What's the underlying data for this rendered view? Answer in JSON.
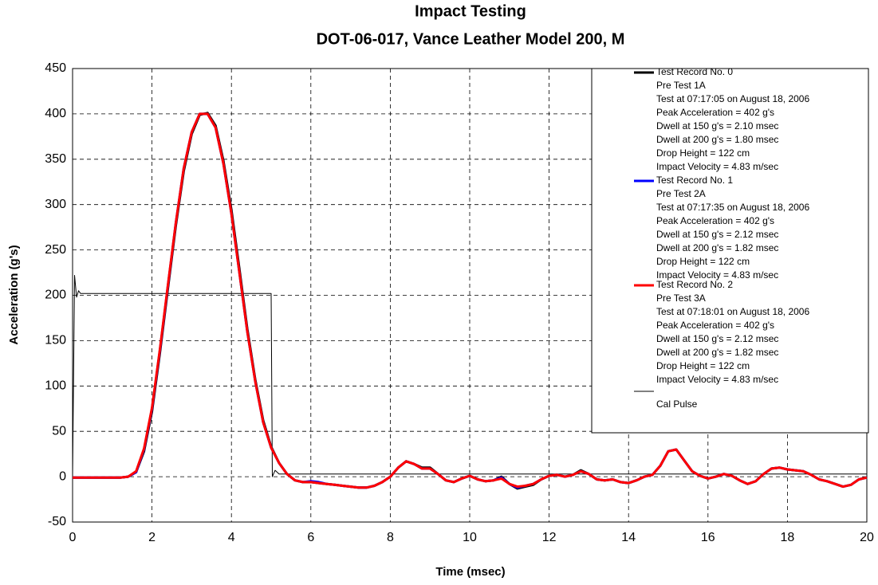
{
  "chart_data": {
    "type": "line",
    "title": "Impact Testing",
    "subtitle": "DOT-06-017, Vance Leather Model 200, M",
    "x_label": "Time (msec)",
    "y_label": "Acceleration (g's)",
    "xlim": [
      0,
      20
    ],
    "xticks": [
      0,
      2,
      4,
      6,
      8,
      10,
      12,
      14,
      16,
      18,
      20
    ],
    "ylim": [
      -50,
      450
    ],
    "yticks": [
      -50,
      0,
      50,
      100,
      150,
      200,
      250,
      300,
      350,
      400,
      450
    ],
    "grid": true,
    "legend": "upper right",
    "x": [
      0,
      0.2,
      0.4,
      0.6,
      0.8,
      1,
      1.2,
      1.4,
      1.6,
      1.8,
      2,
      2.2,
      2.4,
      2.6,
      2.8,
      3,
      3.2,
      3.4,
      3.6,
      3.8,
      4,
      4.2,
      4.4,
      4.6,
      4.8,
      5,
      5.2,
      5.4,
      5.6,
      5.8,
      6,
      6.2,
      6.4,
      6.6,
      6.8,
      7,
      7.2,
      7.4,
      7.6,
      7.8,
      8,
      8.2,
      8.4,
      8.6,
      8.8,
      9,
      9.2,
      9.4,
      9.6,
      9.8,
      10,
      10.2,
      10.4,
      10.6,
      10.8,
      11,
      11.2,
      11.4,
      11.6,
      11.8,
      12,
      12.2,
      12.4,
      12.6,
      12.8,
      13,
      13.2,
      13.4,
      13.6,
      13.8,
      14,
      14.2,
      14.4,
      14.6,
      14.8,
      15,
      15.2,
      15.4,
      15.6,
      15.8,
      16,
      16.2,
      16.4,
      16.6,
      16.8,
      17,
      17.2,
      17.4,
      17.6,
      17.8,
      18,
      18.2,
      18.4,
      18.6,
      18.8,
      19,
      19.2,
      19.4,
      19.6,
      19.8,
      20
    ],
    "series": [
      {
        "name": "Test Record No. 0",
        "color": "#000000",
        "details": [
          "Pre Test 1A",
          "Test at 07:17:05 on August 18, 2006",
          "Peak Acceleration = 402 g's",
          "Dwell at 150 g's = 2.10 msec",
          "Dwell at 200 g's = 1.80 msec",
          "Drop Height = 122 cm",
          "Impact Velocity = 4.83 m/sec"
        ],
        "values": [
          -1,
          -1,
          -1,
          -1,
          -1,
          -1,
          -1,
          0,
          5,
          28,
          72,
          137,
          207,
          277,
          337,
          378,
          399,
          401,
          387,
          348,
          294,
          229,
          163,
          107,
          62,
          33,
          15,
          3,
          -4,
          -6,
          -6,
          -7,
          -8,
          -9,
          -10,
          -11,
          -12,
          -12,
          -10,
          -6,
          0,
          10,
          17,
          14,
          10,
          10,
          3,
          -4,
          -6,
          -2,
          1,
          -3,
          -5,
          -4,
          0,
          -8,
          -13,
          -11,
          -9,
          -3,
          1,
          2,
          0,
          2,
          7,
          3,
          -3,
          -4,
          -3,
          -6,
          -7,
          -4,
          0,
          2,
          12,
          28,
          30,
          18,
          6,
          1,
          -2,
          0,
          3,
          1,
          -4,
          -8,
          -5,
          3,
          9,
          10,
          8,
          7,
          6,
          2,
          -3,
          -5,
          -8,
          -11,
          -9,
          -3,
          -1
        ]
      },
      {
        "name": "Test Record No. 1",
        "color": "#0000ff",
        "details": [
          "Pre Test 2A",
          "Test at 07:17:35 on August 18, 2006",
          "Peak Acceleration = 402 g's",
          "Dwell at 150 g's = 2.12 msec",
          "Dwell at 200 g's = 1.82 msec",
          "Drop Height = 122 cm",
          "Impact Velocity = 4.83 m/sec"
        ],
        "values": [
          -1,
          -1,
          -1,
          -1,
          -1,
          -1,
          -1,
          0,
          5,
          30,
          75,
          140,
          210,
          280,
          340,
          380,
          400,
          400,
          385,
          345,
          290,
          225,
          160,
          105,
          60,
          32,
          15,
          3,
          -4,
          -6,
          -5,
          -6,
          -8,
          -9,
          -10,
          -11,
          -12,
          -12,
          -10,
          -6,
          0,
          10,
          17,
          14,
          9,
          9,
          3,
          -4,
          -6,
          -2,
          1,
          -3,
          -5,
          -4,
          -1,
          -8,
          -12,
          -10,
          -8,
          -3,
          1,
          2,
          0,
          2,
          6,
          3,
          -3,
          -4,
          -3,
          -6,
          -7,
          -4,
          0,
          2,
          12,
          28,
          30,
          18,
          6,
          1,
          -2,
          0,
          3,
          1,
          -4,
          -8,
          -5,
          3,
          9,
          10,
          8,
          7,
          6,
          2,
          -3,
          -5,
          -8,
          -11,
          -9,
          -3,
          -1
        ]
      },
      {
        "name": "Test Record No. 2",
        "color": "#ff0000",
        "details": [
          "Pre Test 3A",
          "Test at 07:18:01 on August 18, 2006",
          "Peak Acceleration = 402 g's",
          "Dwell at 150 g's = 2.12 msec",
          "Dwell at 200 g's = 1.82 msec",
          "Drop Height = 122 cm",
          "Impact Velocity = 4.83 m/sec"
        ],
        "values": [
          -1,
          -1,
          -1,
          -1,
          -1,
          -1,
          -1,
          0,
          6,
          31,
          76,
          141,
          211,
          280,
          340,
          380,
          400,
          400,
          385,
          345,
          290,
          225,
          160,
          105,
          60,
          32,
          15,
          3,
          -4,
          -6,
          -6,
          -7,
          -8,
          -9,
          -10,
          -11,
          -12,
          -12,
          -10,
          -6,
          0,
          10,
          17,
          14,
          9,
          9,
          3,
          -4,
          -6,
          -2,
          1,
          -3,
          -5,
          -4,
          -2,
          -8,
          -11,
          -10,
          -8,
          -3,
          1,
          2,
          0,
          2,
          6,
          3,
          -3,
          -4,
          -3,
          -6,
          -7,
          -4,
          0,
          2,
          12,
          28,
          30,
          18,
          6,
          1,
          -2,
          0,
          3,
          1,
          -4,
          -8,
          -5,
          3,
          9,
          10,
          8,
          7,
          6,
          2,
          -3,
          -5,
          -8,
          -11,
          -9,
          -3,
          -1
        ]
      },
      {
        "name": "Cal Pulse",
        "color": "#000000",
        "x": [
          0,
          0.05,
          0.1,
          0.15,
          0.2,
          0.3,
          5.0,
          5.03,
          5.1,
          5.2,
          20
        ],
        "values": [
          0,
          222,
          198,
          205,
          202,
          202,
          202,
          0,
          7,
          3,
          3
        ]
      }
    ]
  }
}
